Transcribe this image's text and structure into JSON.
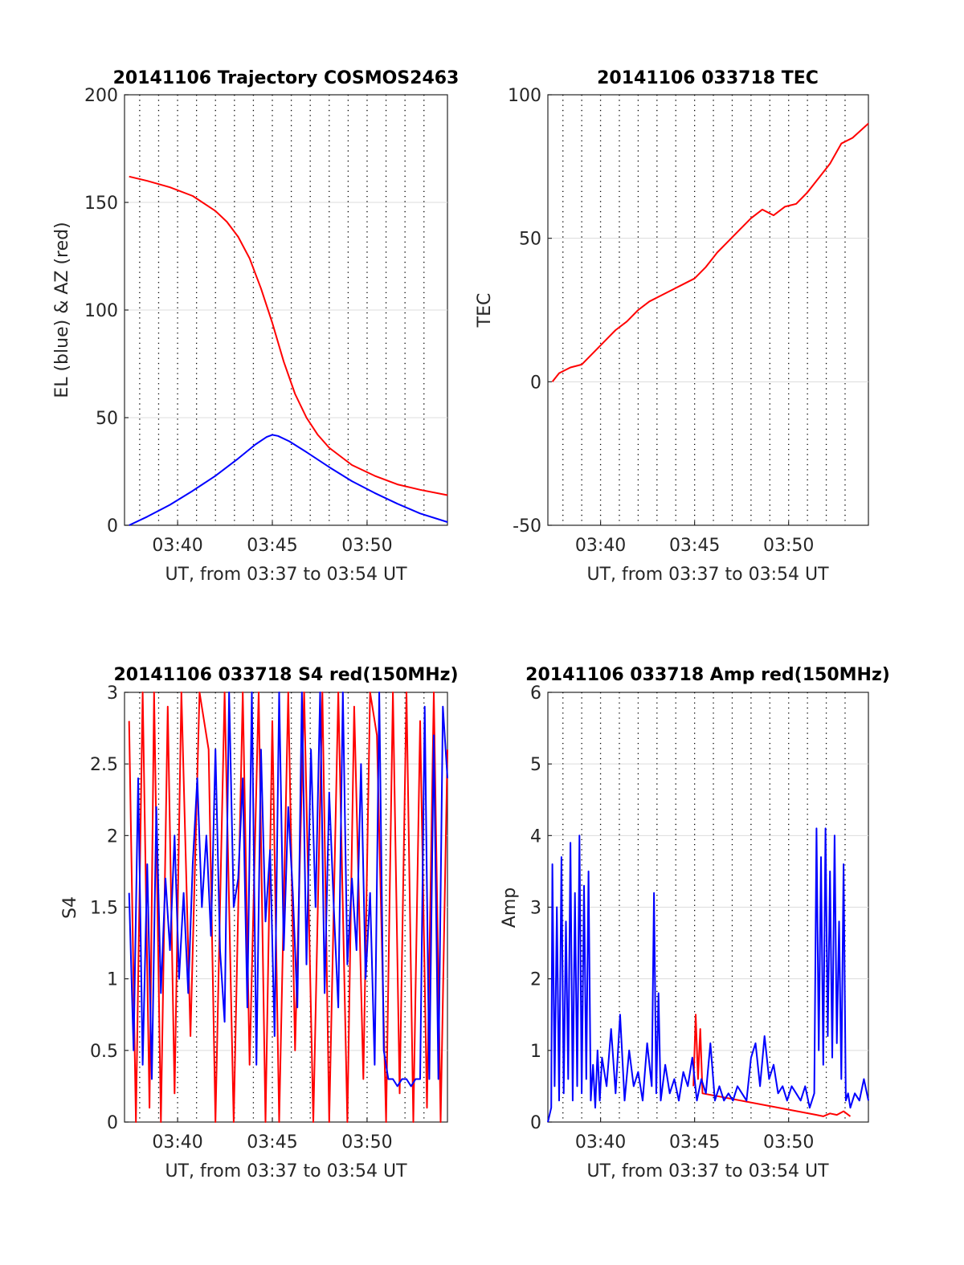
{
  "chart_data": [
    {
      "type": "line",
      "title": "20141106 Trajectory COSMOS2463",
      "xlabel": "UT, from 03:37 to 03:54 UT",
      "ylabel": "EL (blue) & AZ (red)",
      "xlim": [
        3.62,
        3.904
      ],
      "ylim": [
        0,
        200
      ],
      "xticks": [
        {
          "value": 3.6667,
          "label": "03:40"
        },
        {
          "value": 3.75,
          "label": "03:45"
        },
        {
          "value": 3.8333,
          "label": "03:50"
        }
      ],
      "yticks": [
        0,
        50,
        100,
        150,
        200
      ],
      "grid": "dotted vertical (every minute), solid light horizontal",
      "series": [
        {
          "color": "#ff0000",
          "x": [
            3.624,
            3.64,
            3.66,
            3.68,
            3.7,
            3.71,
            3.72,
            3.73,
            3.74,
            3.75,
            3.76,
            3.77,
            3.78,
            3.79,
            3.8,
            3.82,
            3.84,
            3.86,
            3.88,
            3.904
          ],
          "y": [
            162,
            160,
            157,
            153,
            146,
            141,
            134,
            124,
            110,
            94,
            76,
            61,
            50,
            42,
            36,
            28,
            23,
            19,
            16.5,
            14
          ]
        },
        {
          "color": "#0000ff",
          "x": [
            3.624,
            3.64,
            3.66,
            3.68,
            3.7,
            3.72,
            3.735,
            3.745,
            3.75,
            3.755,
            3.765,
            3.78,
            3.8,
            3.82,
            3.84,
            3.86,
            3.88,
            3.904
          ],
          "y": [
            0,
            4,
            9.5,
            16,
            23,
            31,
            37.5,
            41,
            42,
            41.5,
            39,
            34,
            27,
            20.5,
            15,
            10,
            5.5,
            1.5
          ]
        }
      ]
    },
    {
      "type": "line",
      "title": "20141106 033718 TEC",
      "xlabel": "UT, from 03:37 to 03:54 UT",
      "ylabel": "TEC",
      "xlim": [
        3.62,
        3.904
      ],
      "ylim": [
        -50,
        100
      ],
      "xticks": [
        {
          "value": 3.6667,
          "label": "03:40"
        },
        {
          "value": 3.75,
          "label": "03:45"
        },
        {
          "value": 3.8333,
          "label": "03:50"
        }
      ],
      "yticks": [
        -50,
        0,
        50,
        100
      ],
      "grid": "dotted vertical (every minute), solid light horizontal",
      "series": [
        {
          "color": "#ff0000",
          "x": [
            3.624,
            3.63,
            3.64,
            3.65,
            3.66,
            3.67,
            3.68,
            3.69,
            3.7,
            3.71,
            3.72,
            3.73,
            3.74,
            3.75,
            3.76,
            3.77,
            3.78,
            3.79,
            3.8,
            3.81,
            3.82,
            3.83,
            3.84,
            3.85,
            3.86,
            3.87,
            3.88,
            3.89,
            3.904
          ],
          "y": [
            0,
            3,
            5,
            6,
            10,
            14,
            18,
            21,
            25,
            28,
            30,
            32,
            34,
            36,
            40,
            45,
            49,
            53,
            57,
            60,
            58,
            61,
            62,
            66,
            71,
            76,
            83,
            85,
            90
          ]
        }
      ]
    },
    {
      "type": "line",
      "title": "20141106 033718 S4 red(150MHz)",
      "xlabel": "UT, from 03:37 to 03:54 UT",
      "ylabel": "S4",
      "xlim": [
        3.62,
        3.904
      ],
      "ylim": [
        0,
        3
      ],
      "xticks": [
        {
          "value": 3.6667,
          "label": "03:40"
        },
        {
          "value": 3.75,
          "label": "03:45"
        },
        {
          "value": 3.8333,
          "label": "03:50"
        }
      ],
      "yticks": [
        0,
        0.5,
        1,
        1.5,
        2,
        2.5,
        3
      ],
      "grid": "dotted vertical (every minute), solid light horizontal",
      "series": [
        {
          "color": "#ff0000",
          "x": [
            3.624,
            3.63,
            3.636,
            3.642,
            3.646,
            3.652,
            3.658,
            3.664,
            3.67,
            3.678,
            3.686,
            3.694,
            3.7,
            3.708,
            3.716,
            3.724,
            3.73,
            3.738,
            3.744,
            3.75,
            3.756,
            3.764,
            3.77,
            3.778,
            3.786,
            3.794,
            3.8,
            3.808,
            3.816,
            3.822,
            3.83,
            3.836,
            3.842,
            3.85,
            3.856,
            3.862,
            3.868,
            3.874,
            3.88,
            3.886,
            3.892,
            3.898,
            3.904
          ],
          "y": [
            2.8,
            0,
            3,
            0.1,
            3,
            0,
            2.9,
            0.2,
            3,
            0.6,
            3,
            2.6,
            0,
            3,
            0,
            3,
            0.4,
            3,
            0,
            2.8,
            0,
            3,
            0.5,
            3,
            0,
            3,
            0,
            3,
            0,
            2.9,
            0.3,
            3,
            2.7,
            0,
            3,
            0.2,
            3,
            0,
            2.8,
            0.1,
            3,
            0,
            2.6
          ]
        },
        {
          "color": "#0000ff",
          "x": [
            3.624,
            3.628,
            3.632,
            3.636,
            3.64,
            3.644,
            3.648,
            3.652,
            3.656,
            3.66,
            3.664,
            3.668,
            3.672,
            3.676,
            3.68,
            3.684,
            3.688,
            3.692,
            3.696,
            3.7,
            3.704,
            3.708,
            3.712,
            3.716,
            3.72,
            3.724,
            3.728,
            3.732,
            3.736,
            3.74,
            3.744,
            3.748,
            3.752,
            3.756,
            3.76,
            3.764,
            3.768,
            3.772,
            3.776,
            3.78,
            3.784,
            3.788,
            3.792,
            3.796,
            3.8,
            3.804,
            3.808,
            3.812,
            3.816,
            3.82,
            3.824,
            3.828,
            3.832,
            3.836,
            3.84,
            3.844,
            3.848,
            3.852,
            3.856,
            3.86,
            3.864,
            3.868,
            3.872,
            3.876,
            3.88,
            3.884,
            3.888,
            3.892,
            3.896,
            3.9,
            3.904
          ],
          "y": [
            1.6,
            0.5,
            2.4,
            0.4,
            1.8,
            0.3,
            2.2,
            0.9,
            1.7,
            1.2,
            2.0,
            1.0,
            1.6,
            0.9,
            1.8,
            2.4,
            1.5,
            2.0,
            1.3,
            2.6,
            1.2,
            0.7,
            3.0,
            1.5,
            1.7,
            2.4,
            0.8,
            3.0,
            0.4,
            2.6,
            1.4,
            1.9,
            0.6,
            3.0,
            1.2,
            2.2,
            1.6,
            0.8,
            3.0,
            1.1,
            2.6,
            1.5,
            3.0,
            0.9,
            2.3,
            1.5,
            0.8,
            3.0,
            1.1,
            1.7,
            1.2,
            2.5,
            1.0,
            1.6,
            0.4,
            3.0,
            0.5,
            0.3,
            0.3,
            0.25,
            0.3,
            0.3,
            0.25,
            0.3,
            0.3,
            2.9,
            0.3,
            2.7,
            0.3,
            2.9,
            2.4
          ]
        }
      ]
    },
    {
      "type": "line",
      "title": "20141106 033718 Amp red(150MHz)",
      "xlabel": "UT, from 03:37 to 03:54 UT",
      "ylabel": "Amp",
      "xlim": [
        3.62,
        3.904
      ],
      "ylim": [
        0,
        6
      ],
      "xticks": [
        {
          "value": 3.6667,
          "label": "03:40"
        },
        {
          "value": 3.75,
          "label": "03:45"
        },
        {
          "value": 3.8333,
          "label": "03:50"
        }
      ],
      "yticks": [
        0,
        1,
        2,
        3,
        4,
        5,
        6
      ],
      "grid": "dotted vertical (every minute), solid light horizontal",
      "series": [
        {
          "color": "#ff0000",
          "x": [
            3.749,
            3.751,
            3.753,
            3.755,
            3.757,
            3.858,
            3.864,
            3.87,
            3.876,
            3.882,
            3.888
          ],
          "y": [
            0.5,
            1.5,
            0.6,
            1.3,
            0.4,
            0.1,
            0.08,
            0.12,
            0.1,
            0.15,
            0.08
          ]
        },
        {
          "color": "#0000ff",
          "x": [
            3.62,
            3.623,
            3.624,
            3.626,
            3.628,
            3.63,
            3.632,
            3.634,
            3.636,
            3.638,
            3.64,
            3.642,
            3.644,
            3.646,
            3.648,
            3.65,
            3.652,
            3.654,
            3.656,
            3.658,
            3.66,
            3.662,
            3.664,
            3.666,
            3.668,
            3.672,
            3.676,
            3.68,
            3.684,
            3.688,
            3.692,
            3.696,
            3.7,
            3.704,
            3.708,
            3.712,
            3.714,
            3.716,
            3.718,
            3.72,
            3.724,
            3.728,
            3.732,
            3.736,
            3.74,
            3.744,
            3.748,
            3.752,
            3.756,
            3.76,
            3.764,
            3.768,
            3.772,
            3.776,
            3.78,
            3.784,
            3.788,
            3.792,
            3.796,
            3.8,
            3.804,
            3.808,
            3.812,
            3.816,
            3.82,
            3.824,
            3.828,
            3.832,
            3.836,
            3.84,
            3.844,
            3.848,
            3.852,
            3.856,
            3.858,
            3.86,
            3.862,
            3.864,
            3.866,
            3.868,
            3.87,
            3.872,
            3.874,
            3.876,
            3.878,
            3.88,
            3.882,
            3.884,
            3.886,
            3.888,
            3.892,
            3.896,
            3.9,
            3.904
          ],
          "y": [
            0,
            0.2,
            3.6,
            0.5,
            3.0,
            0.3,
            3.7,
            0.4,
            2.8,
            0.6,
            3.9,
            0.3,
            3.2,
            0.5,
            4.0,
            0.4,
            3.3,
            0.6,
            3.5,
            0.3,
            0.8,
            0.2,
            1.0,
            0.3,
            0.9,
            0.5,
            1.3,
            0.4,
            1.5,
            0.3,
            1.0,
            0.5,
            0.7,
            0.3,
            1.1,
            0.5,
            3.2,
            0.4,
            1.8,
            0.3,
            0.8,
            0.4,
            0.6,
            0.3,
            0.7,
            0.5,
            0.9,
            0.3,
            0.6,
            0.4,
            1.1,
            0.3,
            0.5,
            0.3,
            0.4,
            0.3,
            0.5,
            0.4,
            0.3,
            0.9,
            1.1,
            0.5,
            1.2,
            0.6,
            0.8,
            0.4,
            0.5,
            0.3,
            0.5,
            0.4,
            0.3,
            0.5,
            0.2,
            0.4,
            4.1,
            1.0,
            3.7,
            0.8,
            4.1,
            1.2,
            3.5,
            0.9,
            4.0,
            1.1,
            2.8,
            0.6,
            3.6,
            0.3,
            0.4,
            0.2,
            0.4,
            0.3,
            0.6,
            0.3
          ]
        }
      ]
    }
  ]
}
